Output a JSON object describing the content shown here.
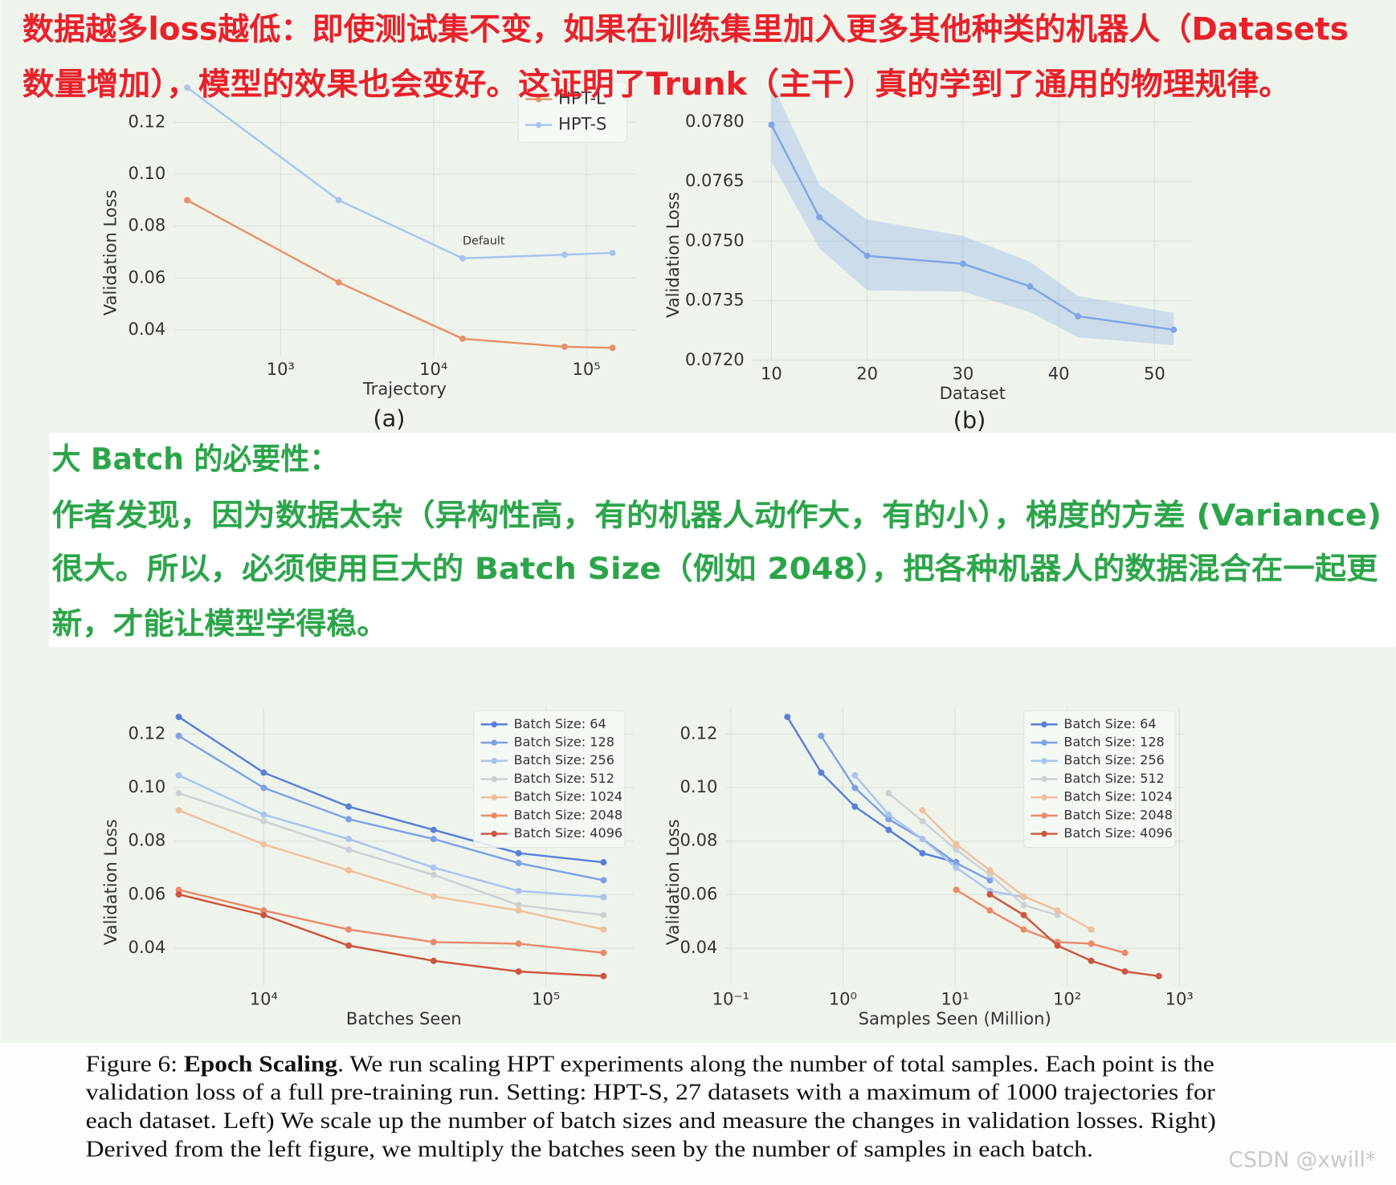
{
  "annotations": {
    "red": [
      "数据越多loss越低：即使测试集不变，如果在训练集里加入更多其他种类的机器人（Datasets",
      "数量增加），模型的效果也会变好。这证明了Trunk（主干）真的学到了通用的物理规律。"
    ],
    "green": [
      "大 Batch 的必要性：",
      "作者发现，因为数据太杂（异构性高，有的机器人动作大，有的小），梯度的方差 (Variance)",
      "很大。所以，必须使用巨大的 Batch Size（例如 2048），把各种机器人的数据混合在一起更",
      "新，才能让模型学得稳。"
    ]
  },
  "chart_data": [
    {
      "type": "line",
      "panel_label": "(a)",
      "xlabel": "Trajectory",
      "ylabel": "Validation Loss",
      "xscale": "log",
      "grid": true,
      "legend": "upper right",
      "annotation": "Default",
      "xlim": [
        200,
        210000
      ],
      "ylim": [
        0.03,
        0.137
      ],
      "xticks": [
        {
          "value": 1000,
          "label": "10³"
        },
        {
          "value": 10000,
          "label": "10⁴"
        },
        {
          "value": 100000,
          "label": "10⁵"
        }
      ],
      "yticks": [
        0.04,
        0.06,
        0.08,
        {
          "value": 0.1,
          "label": "0.10"
        },
        0.12
      ],
      "series": [
        {
          "name": "HPT-L",
          "color": "#e8906a",
          "x": [
            245,
            2400,
            15500,
            72000,
            148000
          ],
          "values": [
            0.09,
            0.0583,
            0.0366,
            0.0335,
            0.0331
          ]
        },
        {
          "name": "HPT-S",
          "color": "#aac4ee",
          "x": [
            245,
            2400,
            15500,
            72000,
            148000
          ],
          "values": [
            0.1334,
            0.09,
            0.0676,
            0.069,
            0.0697
          ]
        }
      ]
    },
    {
      "type": "line",
      "panel_label": "(b)",
      "xlabel": "Dataset",
      "ylabel": "Validation Loss",
      "grid": true,
      "xlim": [
        8,
        54
      ],
      "ylim": [
        0.072,
        0.0791
      ],
      "xticks": [
        10,
        20,
        30,
        40,
        50
      ],
      "yticks": [
        {
          "value": 0.072,
          "label": "0.0720"
        },
        {
          "value": 0.0735,
          "label": "0.0735"
        },
        {
          "value": 0.075,
          "label": "0.0750"
        },
        {
          "value": 0.0765,
          "label": "0.0765"
        },
        {
          "value": 0.078,
          "label": "0.0780"
        }
      ],
      "series": [
        {
          "color": "#7ea5e6",
          "x": [
            10,
            15,
            20,
            30,
            37,
            42,
            52
          ],
          "values": [
            0.07793,
            0.0756,
            0.07463,
            0.07443,
            0.07386,
            0.07311,
            0.07277
          ],
          "band_lower": [
            0.077,
            0.07482,
            0.07376,
            0.07373,
            0.07321,
            0.07258,
            0.07238
          ],
          "band_upper": [
            0.079,
            0.07642,
            0.07554,
            0.07513,
            0.07448,
            0.07362,
            0.07319
          ]
        }
      ]
    },
    {
      "type": "line",
      "xlabel": "Batches Seen",
      "ylabel": "Validation Loss",
      "xscale": "log",
      "grid": true,
      "legend": "upper right",
      "xlim": [
        4800,
        205000
      ],
      "ylim": [
        0.026,
        0.13
      ],
      "xticks": [
        {
          "value": 10000,
          "label": "10⁴"
        },
        {
          "value": 100000,
          "label": "10⁵"
        }
      ],
      "yticks": [
        0.04,
        0.06,
        0.08,
        {
          "value": 0.1,
          "label": "0.10"
        },
        0.12
      ],
      "series": [
        {
          "name": "Batch Size: 64",
          "color": "#5a7fd8",
          "x": [
            5000,
            10000,
            20000,
            40000,
            80000,
            160000
          ],
          "values": [
            0.1264,
            0.1056,
            0.0929,
            0.0842,
            0.0755,
            0.0721
          ]
        },
        {
          "name": "Batch Size: 128",
          "color": "#7fa0e6",
          "x": [
            5000,
            10000,
            20000,
            40000,
            80000,
            160000
          ],
          "values": [
            0.1193,
            0.0999,
            0.0882,
            0.0808,
            0.0718,
            0.0654
          ]
        },
        {
          "name": "Batch Size: 256",
          "color": "#aac4ee",
          "x": [
            5000,
            10000,
            20000,
            40000,
            80000,
            160000
          ],
          "values": [
            0.1046,
            0.0899,
            0.0808,
            0.0701,
            0.0614,
            0.0591
          ]
        },
        {
          "name": "Batch Size: 512",
          "color": "#cdd0d3",
          "x": [
            5000,
            10000,
            20000,
            40000,
            80000,
            160000
          ],
          "values": [
            0.0979,
            0.0875,
            0.0768,
            0.0674,
            0.0561,
            0.0524
          ]
        },
        {
          "name": "Batch Size: 1024",
          "color": "#efbf9f",
          "x": [
            5000,
            10000,
            20000,
            40000,
            80000,
            160000
          ],
          "values": [
            0.0915,
            0.0788,
            0.0691,
            0.0594,
            0.0541,
            0.047
          ]
        },
        {
          "name": "Batch Size: 2048",
          "color": "#e98a6c",
          "x": [
            5000,
            10000,
            20000,
            40000,
            80000,
            160000
          ],
          "values": [
            0.0618,
            0.0541,
            0.047,
            0.0423,
            0.0417,
            0.0383
          ]
        },
        {
          "name": "Batch Size: 4096",
          "color": "#cc5541",
          "x": [
            5000,
            10000,
            20000,
            40000,
            80000,
            160000
          ],
          "values": [
            0.0601,
            0.0524,
            0.041,
            0.0353,
            0.0313,
            0.0296
          ]
        }
      ]
    },
    {
      "type": "line",
      "xlabel": "Samples Seen (Million)",
      "ylabel": "Validation Loss",
      "xscale": "log",
      "grid": true,
      "legend": "upper right",
      "xlim": [
        0.09,
        1100
      ],
      "ylim": [
        0.026,
        0.13
      ],
      "xticks": [
        {
          "value": 0.1,
          "label": "10⁻¹"
        },
        {
          "value": 1,
          "label": "10⁰"
        },
        {
          "value": 10,
          "label": "10¹"
        },
        {
          "value": 100,
          "label": "10²"
        },
        {
          "value": 1000,
          "label": "10³"
        }
      ],
      "yticks": [
        0.04,
        0.06,
        0.08,
        {
          "value": 0.1,
          "label": "0.10"
        },
        0.12
      ],
      "series": [
        {
          "name": "Batch Size: 64",
          "color": "#5a7fd8",
          "x": [
            0.32,
            0.64,
            1.28,
            2.56,
            5.12,
            10.24
          ],
          "values": [
            0.1264,
            0.1056,
            0.0929,
            0.0842,
            0.0755,
            0.0721
          ]
        },
        {
          "name": "Batch Size: 128",
          "color": "#7fa0e6",
          "x": [
            0.64,
            1.28,
            2.56,
            5.12,
            10.24,
            20.48
          ],
          "values": [
            0.1193,
            0.0999,
            0.0882,
            0.0808,
            0.0718,
            0.0654
          ]
        },
        {
          "name": "Batch Size: 256",
          "color": "#aac4ee",
          "x": [
            1.28,
            2.56,
            5.12,
            10.24,
            20.48,
            40.96
          ],
          "values": [
            0.1046,
            0.0899,
            0.0808,
            0.0701,
            0.0614,
            0.0591
          ]
        },
        {
          "name": "Batch Size: 512",
          "color": "#cdd0d3",
          "x": [
            2.56,
            5.12,
            10.24,
            20.48,
            40.96,
            81.92
          ],
          "values": [
            0.0979,
            0.0875,
            0.0768,
            0.0674,
            0.0561,
            0.0524
          ]
        },
        {
          "name": "Batch Size: 1024",
          "color": "#efbf9f",
          "x": [
            5.12,
            10.24,
            20.48,
            40.96,
            81.92,
            163.84
          ],
          "values": [
            0.0915,
            0.0788,
            0.0691,
            0.0594,
            0.0541,
            0.047
          ]
        },
        {
          "name": "Batch Size: 2048",
          "color": "#e98a6c",
          "x": [
            10.24,
            20.48,
            40.96,
            81.92,
            163.84,
            327.68
          ],
          "values": [
            0.0618,
            0.0541,
            0.047,
            0.0423,
            0.0417,
            0.0383
          ]
        },
        {
          "name": "Batch Size: 4096",
          "color": "#cc5541",
          "x": [
            20.48,
            40.96,
            81.92,
            163.84,
            327.68,
            655.36
          ],
          "values": [
            0.0601,
            0.0524,
            0.041,
            0.0353,
            0.0313,
            0.0296
          ]
        }
      ]
    }
  ],
  "caption": {
    "label": "Figure 6:",
    "title": "Epoch Scaling",
    "lines": [
      ". We run scaling HPT experiments along the number of total samples. Each point is the",
      "validation loss of a full pre-training run. Setting: HPT-S, 27 datasets with a maximum of 1000 trajectories for",
      "each dataset. Left) We scale up the number of batch sizes and measure the changes in validation losses. Right)",
      "Derived from the left figure, we multiply the batches seen by the number of samples in each batch."
    ]
  },
  "watermark": "CSDN @xwill*"
}
